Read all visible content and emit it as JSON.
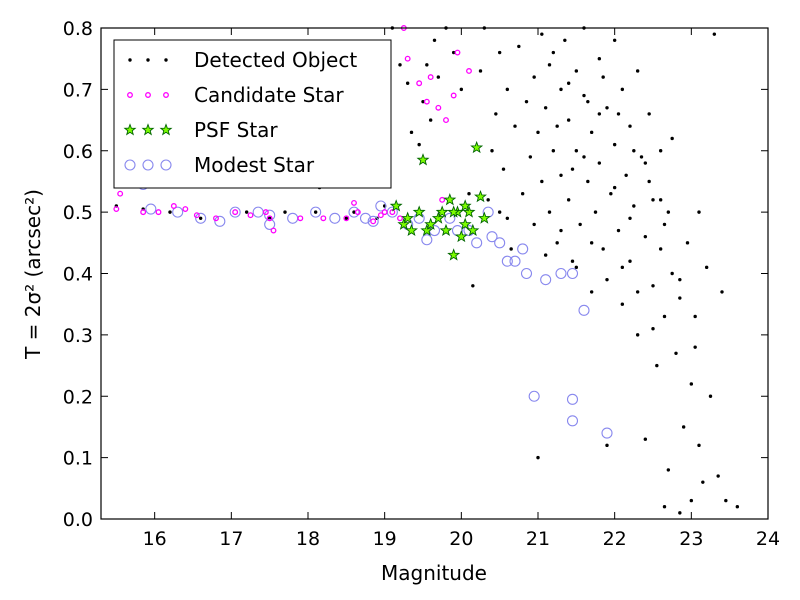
{
  "chart_data": {
    "type": "scatter",
    "title": "",
    "xlabel": "Magnitude",
    "ylabel": "T = 2σ² (arcsec²)",
    "xlim": [
      15.3,
      24
    ],
    "ylim": [
      0.0,
      0.8
    ],
    "xticks": [
      16,
      17,
      18,
      19,
      20,
      21,
      22,
      23,
      24
    ],
    "yticks": [
      0.0,
      0.1,
      0.2,
      0.3,
      0.4,
      0.5,
      0.6,
      0.7,
      0.8
    ],
    "xtick_labels": [
      "16",
      "17",
      "18",
      "19",
      "20",
      "21",
      "22",
      "23",
      "24"
    ],
    "ytick_labels": [
      "0.0",
      "0.1",
      "0.2",
      "0.3",
      "0.4",
      "0.5",
      "0.6",
      "0.7",
      "0.8"
    ],
    "grid": false,
    "legend_position": "top-left",
    "series": [
      {
        "name": "Detected Object",
        "marker": "dot",
        "color": "#000000",
        "points": [
          [
            15.5,
            0.51
          ],
          [
            15.85,
            0.505
          ],
          [
            16.2,
            0.5
          ],
          [
            16.6,
            0.49
          ],
          [
            17.2,
            0.5
          ],
          [
            17.5,
            0.49
          ],
          [
            17.7,
            0.5
          ],
          [
            18.1,
            0.5
          ],
          [
            18.15,
            0.54
          ],
          [
            18.5,
            0.49
          ],
          [
            18.6,
            0.5
          ],
          [
            18.9,
            0.49
          ],
          [
            19.0,
            0.51
          ],
          [
            19.1,
            0.8
          ],
          [
            19.2,
            0.74
          ],
          [
            19.3,
            0.71
          ],
          [
            19.35,
            0.63
          ],
          [
            19.45,
            0.61
          ],
          [
            19.5,
            0.68
          ],
          [
            19.55,
            0.74
          ],
          [
            19.6,
            0.65
          ],
          [
            19.65,
            0.78
          ],
          [
            19.7,
            0.72
          ],
          [
            19.8,
            0.8
          ],
          [
            19.9,
            0.76
          ],
          [
            20.0,
            0.7
          ],
          [
            20.1,
            0.53
          ],
          [
            20.15,
            0.38
          ],
          [
            20.25,
            0.73
          ],
          [
            20.3,
            0.8
          ],
          [
            20.35,
            0.52
          ],
          [
            20.4,
            0.6
          ],
          [
            20.5,
            0.5
          ],
          [
            20.6,
            0.49
          ],
          [
            20.45,
            0.66
          ],
          [
            20.5,
            0.76
          ],
          [
            20.55,
            0.57
          ],
          [
            20.6,
            0.7
          ],
          [
            20.65,
            0.44
          ],
          [
            20.7,
            0.64
          ],
          [
            20.75,
            0.77
          ],
          [
            20.8,
            0.53
          ],
          [
            20.85,
            0.68
          ],
          [
            20.9,
            0.59
          ],
          [
            20.95,
            0.72
          ],
          [
            20.95,
            0.48
          ],
          [
            21.0,
            0.1
          ],
          [
            21.0,
            0.63
          ],
          [
            21.05,
            0.79
          ],
          [
            21.05,
            0.55
          ],
          [
            21.1,
            0.67
          ],
          [
            21.15,
            0.5
          ],
          [
            21.15,
            0.74
          ],
          [
            21.2,
            0.6
          ],
          [
            21.25,
            0.45
          ],
          [
            21.3,
            0.7
          ],
          [
            21.3,
            0.56
          ],
          [
            21.35,
            0.78
          ],
          [
            21.4,
            0.65
          ],
          [
            21.4,
            0.52
          ],
          [
            21.45,
            0.42
          ],
          [
            21.5,
            0.73
          ],
          [
            21.5,
            0.6
          ],
          [
            21.55,
            0.48
          ],
          [
            21.6,
            0.69
          ],
          [
            21.6,
            0.8
          ],
          [
            21.65,
            0.55
          ],
          [
            21.7,
            0.63
          ],
          [
            21.7,
            0.37
          ],
          [
            21.75,
            0.5
          ],
          [
            21.8,
            0.75
          ],
          [
            21.8,
            0.58
          ],
          [
            21.85,
            0.44
          ],
          [
            21.9,
            0.67
          ],
          [
            21.9,
            0.12
          ],
          [
            21.95,
            0.53
          ],
          [
            22.0,
            0.78
          ],
          [
            22.0,
            0.61
          ],
          [
            22.05,
            0.47
          ],
          [
            22.1,
            0.7
          ],
          [
            22.1,
            0.35
          ],
          [
            22.15,
            0.56
          ],
          [
            22.2,
            0.64
          ],
          [
            22.2,
            0.42
          ],
          [
            22.25,
            0.51
          ],
          [
            22.3,
            0.73
          ],
          [
            22.3,
            0.3
          ],
          [
            22.35,
            0.59
          ],
          [
            22.4,
            0.46
          ],
          [
            22.4,
            0.13
          ],
          [
            22.45,
            0.66
          ],
          [
            22.5,
            0.38
          ],
          [
            22.5,
            0.52
          ],
          [
            22.55,
            0.25
          ],
          [
            22.6,
            0.6
          ],
          [
            22.6,
            0.44
          ],
          [
            22.65,
            0.33
          ],
          [
            22.65,
            0.02
          ],
          [
            22.7,
            0.5
          ],
          [
            22.7,
            0.08
          ],
          [
            22.75,
            0.4
          ],
          [
            22.75,
            0.62
          ],
          [
            22.8,
            0.27
          ],
          [
            22.85,
            0.36
          ],
          [
            22.85,
            0.01
          ],
          [
            22.9,
            0.15
          ],
          [
            22.95,
            0.45
          ],
          [
            23.0,
            0.22
          ],
          [
            23.0,
            0.03
          ],
          [
            23.05,
            0.33
          ],
          [
            23.1,
            0.5
          ],
          [
            23.1,
            0.12
          ],
          [
            23.15,
            0.06
          ],
          [
            23.2,
            0.41
          ],
          [
            23.25,
            0.2
          ],
          [
            23.3,
            0.79
          ],
          [
            23.35,
            0.07
          ],
          [
            23.4,
            0.37
          ],
          [
            23.45,
            0.03
          ],
          [
            23.6,
            0.02
          ],
          [
            21.2,
            0.76
          ],
          [
            21.4,
            0.71
          ],
          [
            21.6,
            0.59
          ],
          [
            21.8,
            0.66
          ],
          [
            22.0,
            0.54
          ],
          [
            22.2,
            0.49
          ],
          [
            22.4,
            0.58
          ],
          [
            22.6,
            0.52
          ],
          [
            21.3,
            0.47
          ],
          [
            21.5,
            0.41
          ],
          [
            21.7,
            0.45
          ],
          [
            21.9,
            0.39
          ],
          [
            22.1,
            0.41
          ],
          [
            22.3,
            0.37
          ],
          [
            22.5,
            0.31
          ],
          [
            21.1,
            0.43
          ],
          [
            21.25,
            0.64
          ],
          [
            21.45,
            0.57
          ],
          [
            21.65,
            0.68
          ],
          [
            21.85,
            0.72
          ],
          [
            22.05,
            0.66
          ],
          [
            22.25,
            0.6
          ],
          [
            22.45,
            0.55
          ],
          [
            22.65,
            0.48
          ],
          [
            22.85,
            0.39
          ],
          [
            23.05,
            0.28
          ]
        ]
      },
      {
        "name": "Candidate Star",
        "marker": "small-circle",
        "color": "#ff00ff",
        "points": [
          [
            15.5,
            0.505
          ],
          [
            15.55,
            0.53
          ],
          [
            15.85,
            0.5
          ],
          [
            16.05,
            0.5
          ],
          [
            16.25,
            0.51
          ],
          [
            16.4,
            0.505
          ],
          [
            16.55,
            0.495
          ],
          [
            16.8,
            0.49
          ],
          [
            17.05,
            0.5
          ],
          [
            17.25,
            0.495
          ],
          [
            17.45,
            0.5
          ],
          [
            17.5,
            0.49
          ],
          [
            17.55,
            0.47
          ],
          [
            17.9,
            0.49
          ],
          [
            18.2,
            0.49
          ],
          [
            18.5,
            0.49
          ],
          [
            18.6,
            0.515
          ],
          [
            18.65,
            0.5
          ],
          [
            18.85,
            0.485
          ],
          [
            19.0,
            0.5
          ],
          [
            19.2,
            0.49
          ],
          [
            19.25,
            0.8
          ],
          [
            19.3,
            0.75
          ],
          [
            19.45,
            0.71
          ],
          [
            19.55,
            0.68
          ],
          [
            19.6,
            0.72
          ],
          [
            19.7,
            0.67
          ],
          [
            19.8,
            0.65
          ],
          [
            19.9,
            0.69
          ],
          [
            19.95,
            0.76
          ],
          [
            20.1,
            0.73
          ],
          [
            19.75,
            0.52
          ],
          [
            19.1,
            0.5
          ],
          [
            18.95,
            0.495
          ]
        ]
      },
      {
        "name": "PSF Star",
        "marker": "star",
        "color": "#00aa00",
        "points": [
          [
            19.15,
            0.51
          ],
          [
            19.25,
            0.48
          ],
          [
            19.3,
            0.49
          ],
          [
            19.35,
            0.47
          ],
          [
            19.45,
            0.5
          ],
          [
            19.5,
            0.585
          ],
          [
            19.55,
            0.47
          ],
          [
            19.6,
            0.48
          ],
          [
            19.7,
            0.49
          ],
          [
            19.75,
            0.5
          ],
          [
            19.8,
            0.47
          ],
          [
            19.85,
            0.52
          ],
          [
            19.9,
            0.43
          ],
          [
            19.95,
            0.5
          ],
          [
            20.0,
            0.46
          ],
          [
            20.05,
            0.48
          ],
          [
            20.1,
            0.5
          ],
          [
            20.15,
            0.47
          ],
          [
            20.2,
            0.605
          ],
          [
            20.25,
            0.525
          ],
          [
            20.3,
            0.49
          ],
          [
            19.9,
            0.5
          ],
          [
            20.05,
            0.51
          ]
        ]
      },
      {
        "name": "Modest Star",
        "marker": "open-circle",
        "color": "#8888ee",
        "points": [
          [
            15.85,
            0.545
          ],
          [
            15.95,
            0.505
          ],
          [
            16.3,
            0.5
          ],
          [
            16.6,
            0.49
          ],
          [
            16.85,
            0.485
          ],
          [
            17.05,
            0.5
          ],
          [
            17.35,
            0.5
          ],
          [
            17.5,
            0.495
          ],
          [
            17.5,
            0.48
          ],
          [
            17.8,
            0.49
          ],
          [
            18.1,
            0.5
          ],
          [
            18.35,
            0.49
          ],
          [
            18.6,
            0.5
          ],
          [
            18.75,
            0.49
          ],
          [
            18.85,
            0.485
          ],
          [
            18.95,
            0.51
          ],
          [
            19.1,
            0.5
          ],
          [
            19.3,
            0.48
          ],
          [
            19.45,
            0.49
          ],
          [
            19.55,
            0.455
          ],
          [
            19.65,
            0.47
          ],
          [
            19.85,
            0.49
          ],
          [
            19.95,
            0.47
          ],
          [
            20.1,
            0.47
          ],
          [
            20.2,
            0.45
          ],
          [
            20.35,
            0.5
          ],
          [
            20.4,
            0.46
          ],
          [
            20.5,
            0.45
          ],
          [
            20.6,
            0.42
          ],
          [
            20.7,
            0.42
          ],
          [
            20.8,
            0.44
          ],
          [
            20.85,
            0.4
          ],
          [
            21.1,
            0.39
          ],
          [
            21.3,
            0.4
          ],
          [
            21.45,
            0.4
          ],
          [
            21.6,
            0.34
          ],
          [
            20.95,
            0.2
          ],
          [
            21.45,
            0.195
          ],
          [
            21.45,
            0.16
          ],
          [
            21.9,
            0.14
          ]
        ]
      }
    ]
  }
}
